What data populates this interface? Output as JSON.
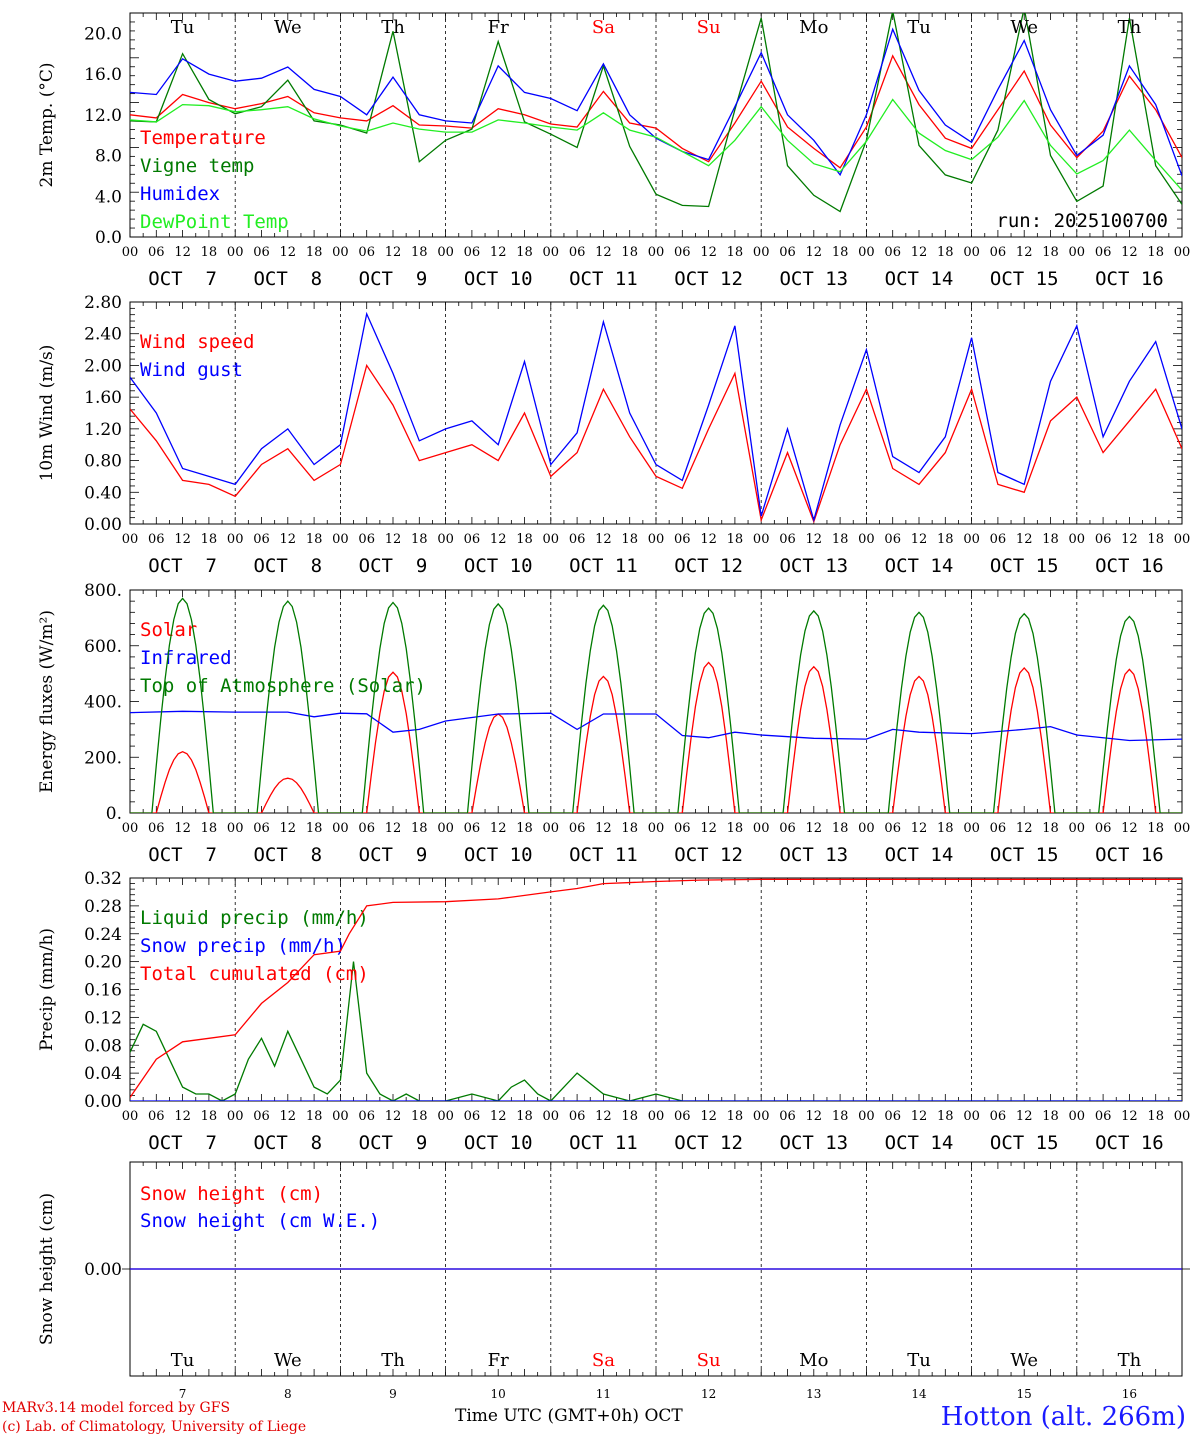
{
  "station": "Hotton (alt. 266m)",
  "credit": [
    "MARv3.14 model forced by GFS",
    "(c) Lab. of Climatology, University of Liege"
  ],
  "x_axis_title": "Time UTC (GMT+0h) OCT",
  "run_label": "run: 2025100700",
  "days": [
    {
      "dow": "Tu",
      "date": "OCT  7",
      "num": "7",
      "weekend": false
    },
    {
      "dow": "We",
      "date": "OCT  8",
      "num": "8",
      "weekend": false
    },
    {
      "dow": "Th",
      "date": "OCT  9",
      "num": "9",
      "weekend": false
    },
    {
      "dow": "Fr",
      "date": "OCT 10",
      "num": "10",
      "weekend": false
    },
    {
      "dow": "Sa",
      "date": "OCT 11",
      "num": "11",
      "weekend": true
    },
    {
      "dow": "Su",
      "date": "OCT 12",
      "num": "12",
      "weekend": true
    },
    {
      "dow": "Mo",
      "date": "OCT 13",
      "num": "13",
      "weekend": false
    },
    {
      "dow": "Tu",
      "date": "OCT 14",
      "num": "14",
      "weekend": false
    },
    {
      "dow": "We",
      "date": "OCT 15",
      "num": "15",
      "weekend": false
    },
    {
      "dow": "Th",
      "date": "OCT 16",
      "num": "16",
      "weekend": false
    }
  ],
  "hour_ticks": [
    "00",
    "06",
    "12",
    "18"
  ],
  "colors": {
    "red": "#ff0000",
    "green": "#007a00",
    "blue": "#0000ff",
    "lightgreen": "#22ee22",
    "weekend": "#ff0000"
  },
  "chart_data": [
    {
      "type": "line",
      "ylabel": "2m Temp. (°C)",
      "ylim": [
        0,
        22
      ],
      "yticks": [
        "0.0",
        "4.0",
        "8.0",
        "12.0",
        "16.0",
        "20.0"
      ],
      "ytick_values": [
        0,
        4,
        8,
        12,
        16,
        20
      ],
      "x_unit": "hours since Oct 7 00 UTC",
      "series": [
        {
          "name": "Temperature",
          "color": "red",
          "x": [
            0,
            6,
            12,
            18,
            24,
            30,
            36,
            42,
            48,
            54,
            60,
            66,
            72,
            78,
            84,
            90,
            96,
            102,
            108,
            114,
            120,
            126,
            132,
            138,
            144,
            150,
            156,
            162,
            168,
            174,
            180,
            186,
            192,
            198,
            204,
            210,
            216,
            222,
            228,
            234,
            240
          ],
          "y": [
            12.0,
            11.7,
            14.0,
            13.2,
            12.6,
            13.1,
            13.8,
            12.2,
            11.7,
            11.4,
            12.9,
            11.0,
            10.9,
            10.7,
            12.6,
            12.0,
            11.1,
            10.8,
            14.3,
            11.2,
            10.7,
            8.7,
            7.4,
            11.2,
            15.3,
            10.8,
            8.7,
            6.8,
            10.8,
            17.8,
            13.0,
            9.7,
            8.7,
            12.5,
            16.3,
            11.0,
            7.8,
            10.4,
            15.8,
            12.5,
            7.8
          ]
        },
        {
          "name": "Vigne temp",
          "color": "green",
          "x": [
            0,
            6,
            12,
            18,
            24,
            30,
            36,
            42,
            48,
            54,
            60,
            66,
            72,
            78,
            84,
            90,
            96,
            102,
            108,
            114,
            120,
            126,
            132,
            138,
            144,
            150,
            156,
            162,
            168,
            174,
            180,
            186,
            192,
            198,
            204,
            210,
            216,
            222,
            228,
            234,
            240
          ],
          "y": [
            11.4,
            11.3,
            18.0,
            13.5,
            12.1,
            12.8,
            15.4,
            11.4,
            11.0,
            10.2,
            20.2,
            7.4,
            9.5,
            10.6,
            19.2,
            11.3,
            10.1,
            8.8,
            16.8,
            8.9,
            4.2,
            3.1,
            3.0,
            12.5,
            21.5,
            7.0,
            4.1,
            2.5,
            9.5,
            22.2,
            9.0,
            6.1,
            5.3,
            10.5,
            22.5,
            8.0,
            3.5,
            5.0,
            21.5,
            7.0,
            3.2
          ]
        },
        {
          "name": "Humidex",
          "color": "blue",
          "x": [
            0,
            6,
            12,
            18,
            24,
            30,
            36,
            42,
            48,
            54,
            60,
            66,
            72,
            78,
            84,
            90,
            96,
            102,
            108,
            114,
            120,
            126,
            132,
            138,
            144,
            150,
            156,
            162,
            168,
            174,
            180,
            186,
            192,
            198,
            204,
            210,
            216,
            222,
            228,
            234,
            240
          ],
          "y": [
            14.2,
            14.0,
            17.5,
            16.0,
            15.3,
            15.6,
            16.7,
            14.5,
            13.8,
            12.0,
            15.7,
            12.0,
            11.4,
            11.2,
            16.8,
            14.2,
            13.6,
            12.4,
            17.0,
            12.0,
            9.7,
            8.4,
            7.6,
            12.8,
            18.1,
            12.0,
            9.5,
            6.1,
            12.0,
            20.4,
            14.4,
            11.0,
            9.3,
            14.5,
            19.3,
            12.5,
            8.0,
            10.0,
            16.8,
            13.0,
            6.0
          ]
        },
        {
          "name": "DewPoint Temp",
          "color": "lightgreen",
          "x": [
            0,
            6,
            12,
            18,
            24,
            30,
            36,
            42,
            48,
            54,
            60,
            66,
            72,
            78,
            84,
            90,
            96,
            102,
            108,
            114,
            120,
            126,
            132,
            138,
            144,
            150,
            156,
            162,
            168,
            174,
            180,
            186,
            192,
            198,
            204,
            210,
            216,
            222,
            228,
            234,
            240
          ],
          "y": [
            11.5,
            11.3,
            13.0,
            12.9,
            12.3,
            12.5,
            12.8,
            11.6,
            10.9,
            10.4,
            11.2,
            10.6,
            10.3,
            10.3,
            11.5,
            11.2,
            10.8,
            10.5,
            12.2,
            10.5,
            9.8,
            8.4,
            7.0,
            9.5,
            12.8,
            9.5,
            7.2,
            6.4,
            9.4,
            13.5,
            10.2,
            8.5,
            7.6,
            9.8,
            13.4,
            9.0,
            6.2,
            7.5,
            10.5,
            7.5,
            4.6
          ]
        }
      ]
    },
    {
      "type": "line",
      "ylabel": "10m Wind (m/s)",
      "ylim": [
        0,
        2.8
      ],
      "yticks": [
        "0.00",
        "0.40",
        "0.80",
        "1.20",
        "1.60",
        "2.00",
        "2.40",
        "2.80"
      ],
      "ytick_values": [
        0,
        0.4,
        0.8,
        1.2,
        1.6,
        2.0,
        2.4,
        2.8
      ],
      "x_unit": "hours since Oct 7 00 UTC",
      "series": [
        {
          "name": "Wind speed",
          "color": "red",
          "x": [
            0,
            6,
            12,
            18,
            24,
            30,
            36,
            42,
            48,
            54,
            60,
            66,
            72,
            78,
            84,
            90,
            96,
            102,
            108,
            114,
            120,
            126,
            132,
            138,
            144,
            150,
            156,
            162,
            168,
            174,
            180,
            186,
            192,
            198,
            204,
            210,
            216,
            222,
            228,
            234,
            240
          ],
          "y": [
            1.45,
            1.05,
            0.55,
            0.5,
            0.35,
            0.75,
            0.95,
            0.55,
            0.75,
            2.0,
            1.5,
            0.8,
            0.9,
            1.0,
            0.8,
            1.4,
            0.6,
            0.9,
            1.7,
            1.1,
            0.6,
            0.45,
            1.2,
            1.9,
            0.05,
            0.9,
            0.03,
            1.0,
            1.7,
            0.7,
            0.5,
            0.9,
            1.7,
            0.5,
            0.4,
            1.3,
            1.6,
            0.9,
            1.3,
            1.7,
            0.95
          ]
        },
        {
          "name": "Wind gust",
          "color": "blue",
          "x": [
            0,
            6,
            12,
            18,
            24,
            30,
            36,
            42,
            48,
            54,
            60,
            66,
            72,
            78,
            84,
            90,
            96,
            102,
            108,
            114,
            120,
            126,
            132,
            138,
            144,
            150,
            156,
            162,
            168,
            174,
            180,
            186,
            192,
            198,
            204,
            210,
            216,
            222,
            228,
            234,
            240
          ],
          "y": [
            1.85,
            1.4,
            0.7,
            0.6,
            0.5,
            0.95,
            1.2,
            0.75,
            1.0,
            2.65,
            1.9,
            1.05,
            1.2,
            1.3,
            1.0,
            2.05,
            0.75,
            1.15,
            2.55,
            1.4,
            0.75,
            0.55,
            1.5,
            2.5,
            0.1,
            1.2,
            0.05,
            1.25,
            2.2,
            0.85,
            0.65,
            1.1,
            2.35,
            0.65,
            0.5,
            1.8,
            2.5,
            1.1,
            1.8,
            2.3,
            1.2
          ]
        }
      ]
    },
    {
      "type": "line",
      "ylabel": "Energy fluxes (W/m²)",
      "ylim": [
        0,
        800
      ],
      "yticks": [
        "0.",
        "200.",
        "400.",
        "600.",
        "800."
      ],
      "ytick_values": [
        0,
        200,
        400,
        600,
        800
      ],
      "x_unit": "hours since Oct 7 00 UTC",
      "series": [
        {
          "name": "Solar",
          "color": "red",
          "peak_hour": 12,
          "daylight": [
            6,
            18
          ],
          "daily_peak": [
            220,
            125,
            505,
            355,
            490,
            540,
            525,
            490,
            520,
            515
          ]
        },
        {
          "name": "Infrared",
          "color": "blue",
          "x": [
            0,
            12,
            24,
            36,
            42,
            48,
            54,
            60,
            66,
            72,
            84,
            96,
            102,
            108,
            120,
            126,
            132,
            138,
            144,
            156,
            168,
            174,
            180,
            192,
            204,
            210,
            216,
            228,
            240
          ],
          "y": [
            360,
            365,
            362,
            362,
            345,
            358,
            356,
            290,
            300,
            330,
            355,
            358,
            300,
            355,
            355,
            278,
            270,
            290,
            280,
            268,
            265,
            300,
            290,
            285,
            300,
            310,
            280,
            260,
            265
          ]
        },
        {
          "name": "Top of Atmosphere (Solar)",
          "color": "green",
          "peak_hour": 12,
          "daylight": [
            5,
            19
          ],
          "daily_peak": [
            770,
            760,
            755,
            750,
            745,
            735,
            725,
            720,
            715,
            705
          ]
        }
      ]
    },
    {
      "type": "line",
      "ylabel": "Precip (mm/h)",
      "ylim": [
        0,
        0.32
      ],
      "yticks": [
        "0.00",
        "0.04",
        "0.08",
        "0.12",
        "0.16",
        "0.20",
        "0.24",
        "0.28",
        "0.32"
      ],
      "ytick_values": [
        0,
        0.04,
        0.08,
        0.12,
        0.16,
        0.2,
        0.24,
        0.28,
        0.32
      ],
      "x_unit": "hours since Oct 7 00 UTC",
      "series": [
        {
          "name": "Liquid precip (mm/h)",
          "color": "green",
          "x": [
            0,
            3,
            6,
            9,
            12,
            15,
            18,
            21,
            24,
            27,
            30,
            33,
            36,
            39,
            42,
            45,
            48,
            51,
            54,
            57,
            60,
            63,
            66,
            72,
            78,
            84,
            87,
            90,
            93,
            96,
            102,
            108,
            114,
            120,
            126,
            132,
            138,
            144,
            150,
            168,
            240
          ],
          "y": [
            0.07,
            0.11,
            0.1,
            0.06,
            0.02,
            0.01,
            0.01,
            0.0,
            0.01,
            0.06,
            0.09,
            0.05,
            0.1,
            0.06,
            0.02,
            0.01,
            0.03,
            0.2,
            0.04,
            0.01,
            0.0,
            0.01,
            0.0,
            0.0,
            0.01,
            0.0,
            0.02,
            0.03,
            0.01,
            0.0,
            0.04,
            0.01,
            0.0,
            0.01,
            0.0,
            0.0,
            0.0,
            0.0,
            0.0,
            0.0,
            0.0
          ]
        },
        {
          "name": "Snow precip (mm/h)",
          "color": "blue",
          "x": [
            0,
            240
          ],
          "y": [
            0,
            0
          ]
        },
        {
          "name": "Total cumulated (cm)",
          "color": "red",
          "x": [
            0,
            6,
            12,
            18,
            24,
            30,
            36,
            42,
            48,
            50,
            54,
            60,
            72,
            84,
            96,
            102,
            108,
            120,
            130,
            144,
            168,
            240
          ],
          "y": [
            0.005,
            0.06,
            0.085,
            0.09,
            0.095,
            0.14,
            0.17,
            0.21,
            0.215,
            0.24,
            0.28,
            0.285,
            0.286,
            0.29,
            0.3,
            0.305,
            0.312,
            0.315,
            0.317,
            0.318,
            0.318,
            0.318
          ]
        }
      ]
    },
    {
      "type": "line",
      "ylabel": "Snow height (cm)",
      "ylim": [
        -1,
        1
      ],
      "yticks": [
        "0.00"
      ],
      "ytick_values": [
        0
      ],
      "x_unit": "hours since Oct 7 00 UTC",
      "series": [
        {
          "name": "Snow height (cm)",
          "color": "red",
          "x": [
            0,
            240
          ],
          "y": [
            0,
            0
          ]
        },
        {
          "name": "Snow height (cm W.E.)",
          "color": "blue",
          "x": [
            0,
            240
          ],
          "y": [
            0,
            0
          ]
        }
      ]
    }
  ]
}
